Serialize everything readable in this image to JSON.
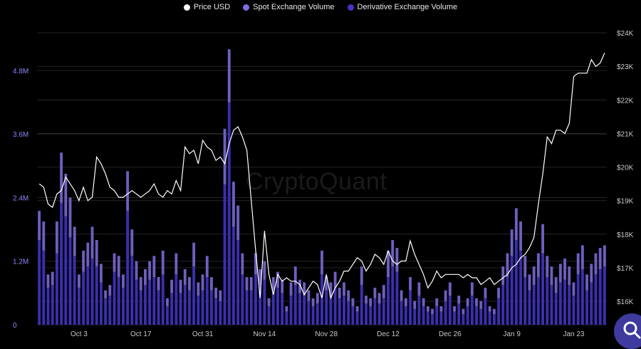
{
  "legend": {
    "price": "Price USD",
    "spot": "Spot Exchange Volume",
    "derivative": "Derivative Exchange Volume"
  },
  "colors": {
    "background": "#000000",
    "price_line": "#ffffff",
    "spot_bar": "#6e5fc0",
    "derivative_bar": "#3b2fb0",
    "left_axis": "#8f86ff",
    "grid": "#242424"
  },
  "watermark": "CryptoQuant",
  "fab_icon": "search-icon",
  "chart_data": {
    "type": "bar",
    "x": [
      "Sep 24",
      "Sep 25",
      "Sep 26",
      "Sep 27",
      "Sep 28",
      "Sep 29",
      "Sep 30",
      "Oct 1",
      "Oct 2",
      "Oct 3",
      "Oct 4",
      "Oct 5",
      "Oct 6",
      "Oct 7",
      "Oct 8",
      "Oct 9",
      "Oct 10",
      "Oct 11",
      "Oct 12",
      "Oct 13",
      "Oct 14",
      "Oct 15",
      "Oct 16",
      "Oct 17",
      "Oct 18",
      "Oct 19",
      "Oct 20",
      "Oct 21",
      "Oct 22",
      "Oct 23",
      "Oct 24",
      "Oct 25",
      "Oct 26",
      "Oct 27",
      "Oct 28",
      "Oct 29",
      "Oct 30",
      "Oct 31",
      "Nov 1",
      "Nov 2",
      "Nov 3",
      "Nov 4",
      "Nov 5",
      "Nov 6",
      "Nov 7",
      "Nov 8",
      "Nov 9",
      "Nov 10",
      "Nov 11",
      "Nov 12",
      "Nov 13",
      "Nov 14",
      "Nov 15",
      "Nov 16",
      "Nov 17",
      "Nov 18",
      "Nov 19",
      "Nov 20",
      "Nov 21",
      "Nov 22",
      "Nov 23",
      "Nov 24",
      "Nov 25",
      "Nov 26",
      "Nov 27",
      "Nov 28",
      "Nov 29",
      "Nov 30",
      "Dec 1",
      "Dec 2",
      "Dec 3",
      "Dec 4",
      "Dec 5",
      "Dec 6",
      "Dec 7",
      "Dec 8",
      "Dec 9",
      "Dec 10",
      "Dec 11",
      "Dec 12",
      "Dec 13",
      "Dec 14",
      "Dec 15",
      "Dec 16",
      "Dec 17",
      "Dec 18",
      "Dec 19",
      "Dec 20",
      "Dec 21",
      "Dec 22",
      "Dec 23",
      "Dec 24",
      "Dec 25",
      "Dec 26",
      "Dec 27",
      "Dec 28",
      "Dec 29",
      "Dec 30",
      "Dec 31",
      "Jan 1",
      "Jan 2",
      "Jan 3",
      "Jan 4",
      "Jan 5",
      "Jan 6",
      "Jan 7",
      "Jan 8",
      "Jan 9",
      "Jan 10",
      "Jan 11",
      "Jan 12",
      "Jan 13",
      "Jan 14",
      "Jan 15",
      "Jan 16",
      "Jan 17",
      "Jan 18",
      "Jan 19",
      "Jan 20",
      "Jan 21",
      "Jan 22",
      "Jan 23",
      "Jan 24",
      "Jan 25",
      "Jan 26",
      "Jan 27",
      "Jan 28",
      "Jan 29",
      "Jan 30"
    ],
    "x_ticks": [
      "Oct 3",
      "Oct 17",
      "Oct 31",
      "Nov 14",
      "Nov 28",
      "Dec 12",
      "Dec 26",
      "Jan 9",
      "Jan 23"
    ],
    "series": [
      {
        "name": "Derivative Exchange Volume",
        "axis": "left",
        "kind": "bar",
        "values": [
          1600000,
          1400000,
          700000,
          750000,
          1350000,
          2300000,
          2050000,
          1650000,
          1300000,
          700000,
          1000000,
          1100000,
          1250000,
          1100000,
          800000,
          500000,
          550000,
          1000000,
          900000,
          700000,
          2150000,
          1300000,
          850000,
          650000,
          750000,
          850000,
          900000,
          650000,
          950000,
          350000,
          600000,
          950000,
          600000,
          750000,
          650000,
          1100000,
          550000,
          650000,
          900000,
          650000,
          500000,
          450000,
          2650000,
          4200000,
          1850000,
          1600000,
          950000,
          650000,
          650000,
          950000,
          750000,
          850000,
          350000,
          650000,
          700000,
          600000,
          250000,
          550000,
          750000,
          600000,
          550000,
          450000,
          350000,
          400000,
          950000,
          650000,
          550000,
          700000,
          500000,
          550000,
          450000,
          350000,
          250000,
          750000,
          400000,
          350000,
          500000,
          400000,
          500000,
          900000,
          1100000,
          1000000,
          450000,
          350000,
          650000,
          300000,
          550000,
          350000,
          250000,
          200000,
          350000,
          250000,
          450000,
          550000,
          250000,
          400000,
          200000,
          350000,
          550000,
          350000,
          300000,
          500000,
          250000,
          200000,
          500000,
          750000,
          900000,
          1300000,
          1600000,
          1400000,
          900000,
          650000,
          750000,
          900000,
          1350000,
          900000,
          750000,
          600000,
          800000,
          850000,
          750000,
          550000,
          950000,
          1050000,
          650000,
          800000,
          950000,
          1050000,
          1100000
        ],
        "spot_overlay": null
      },
      {
        "name": "Spot Exchange Volume",
        "axis": "left",
        "kind": "bar",
        "values": [
          550000,
          550000,
          250000,
          250000,
          600000,
          950000,
          800000,
          750000,
          550000,
          250000,
          400000,
          450000,
          600000,
          500000,
          350000,
          150000,
          200000,
          350000,
          400000,
          250000,
          750000,
          500000,
          350000,
          250000,
          300000,
          350000,
          400000,
          250000,
          450000,
          150000,
          250000,
          400000,
          250000,
          300000,
          250000,
          450000,
          250000,
          300000,
          400000,
          250000,
          200000,
          200000,
          1050000,
          1000000,
          850000,
          650000,
          400000,
          250000,
          250000,
          400000,
          300000,
          350000,
          150000,
          250000,
          300000,
          250000,
          100000,
          250000,
          350000,
          250000,
          250000,
          200000,
          150000,
          200000,
          450000,
          250000,
          250000,
          300000,
          200000,
          250000,
          200000,
          150000,
          100000,
          350000,
          150000,
          150000,
          200000,
          200000,
          250000,
          500000,
          500000,
          450000,
          200000,
          150000,
          250000,
          150000,
          250000,
          150000,
          100000,
          100000,
          150000,
          100000,
          200000,
          250000,
          100000,
          150000,
          100000,
          150000,
          250000,
          150000,
          150000,
          200000,
          100000,
          100000,
          200000,
          350000,
          450000,
          500000,
          600000,
          550000,
          400000,
          300000,
          350000,
          450000,
          550000,
          400000,
          350000,
          300000,
          350000,
          400000,
          350000,
          250000,
          400000,
          450000,
          300000,
          350000,
          400000,
          400000,
          400000
        ]
      },
      {
        "name": "Price USD",
        "axis": "right",
        "kind": "line",
        "values": [
          19500,
          19400,
          18900,
          18800,
          19200,
          19300,
          19700,
          19500,
          19300,
          19000,
          19400,
          19000,
          19100,
          20300,
          20100,
          19800,
          19400,
          19300,
          19100,
          19100,
          19200,
          19300,
          19200,
          19100,
          19200,
          19300,
          19500,
          19200,
          19100,
          19300,
          19200,
          19600,
          19300,
          20600,
          20400,
          20500,
          20100,
          20800,
          20600,
          20500,
          20200,
          20300,
          20100,
          20700,
          21100,
          21200,
          20900,
          20500,
          19000,
          17500,
          16100,
          18100,
          16800,
          16200,
          16800,
          16600,
          16700,
          16600,
          16600,
          16500,
          16200,
          16400,
          16600,
          16500,
          16100,
          16800,
          16100,
          16400,
          16600,
          16900,
          16900,
          17100,
          17300,
          17200,
          16900,
          17100,
          17400,
          17300,
          17100,
          17500,
          17200,
          17100,
          17200,
          17200,
          17800,
          17400,
          17100,
          16800,
          16400,
          16600,
          16900,
          16700,
          16800,
          16800,
          16800,
          16800,
          16700,
          16800,
          16700,
          16700,
          16500,
          16600,
          16700,
          16500,
          16600,
          16700,
          16800,
          17000,
          17100,
          17300,
          17400,
          17600,
          17900,
          18900,
          19800,
          20900,
          20700,
          21100,
          21100,
          21000,
          21300,
          22700,
          22800,
          22800,
          22800,
          23200,
          23000,
          23100,
          23400
        ]
      }
    ],
    "y_left": {
      "ticks": [
        "0",
        "1.2M",
        "2.4M",
        "3.6M",
        "4.8M"
      ],
      "range": [
        0,
        5700000
      ]
    },
    "y_right": {
      "ticks": [
        "$16K",
        "$17K",
        "$18K",
        "$19K",
        "$20K",
        "$21K",
        "$22K",
        "$23K",
        "$24K"
      ],
      "range": [
        15300,
        24300
      ]
    },
    "grid": true,
    "legend_position": "top-center"
  }
}
